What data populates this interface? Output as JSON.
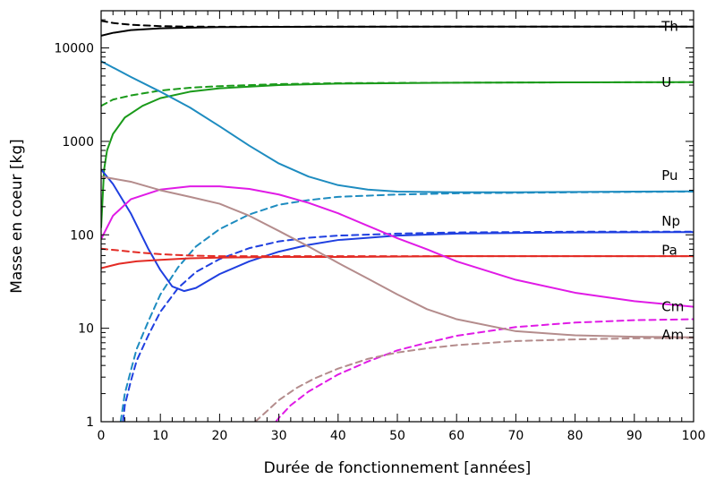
{
  "chart_data": {
    "type": "line",
    "title": "",
    "xlabel": "Durée de fonctionnement [années]",
    "ylabel": "Masse en coeur [kg]",
    "xlim": [
      0,
      100
    ],
    "ylim": [
      1,
      25000
    ],
    "yscale": "log",
    "grid": false,
    "xticks": [
      0,
      10,
      20,
      30,
      40,
      50,
      60,
      70,
      80,
      90,
      100
    ],
    "yticks": [
      {
        "value": 1,
        "label": "1"
      },
      {
        "value": 10,
        "label": "10"
      },
      {
        "value": 100,
        "label": "100"
      },
      {
        "value": 1000,
        "label": "1000"
      },
      {
        "value": 10000,
        "label": "10000"
      }
    ],
    "labels": [
      {
        "text": "Th",
        "x": 94,
        "y": 17000
      },
      {
        "text": "U",
        "x": 94,
        "y": 4300
      },
      {
        "text": "Pu",
        "x": 94,
        "y": 430
      },
      {
        "text": "Np",
        "x": 94,
        "y": 140
      },
      {
        "text": "Pa",
        "x": 94,
        "y": 68
      },
      {
        "text": "Cm",
        "x": 94,
        "y": 17
      },
      {
        "text": "Am",
        "x": 94,
        "y": 8.5
      }
    ],
    "series": [
      {
        "key": "th_solid",
        "color": "#000000",
        "dash": false,
        "x": [
          0,
          2,
          5,
          10,
          15,
          20,
          30,
          40,
          60,
          80,
          100
        ],
        "y": [
          13500,
          14500,
          15500,
          16200,
          16500,
          16700,
          16800,
          16850,
          16900,
          16900,
          16900
        ]
      },
      {
        "key": "th_dash",
        "color": "#000000",
        "dash": true,
        "x": [
          0,
          2,
          5,
          10,
          15,
          20,
          30,
          40,
          60,
          80,
          100
        ],
        "y": [
          19500,
          18500,
          17700,
          17100,
          16900,
          16850,
          16850,
          16900,
          16900,
          16900,
          16900
        ]
      },
      {
        "key": "u_solid",
        "color": "#1a9a1a",
        "dash": false,
        "x": [
          0,
          0.5,
          1,
          2,
          4,
          7,
          10,
          15,
          20,
          30,
          40,
          60,
          80,
          100
        ],
        "y": [
          120,
          500,
          800,
          1200,
          1800,
          2400,
          2900,
          3400,
          3700,
          4000,
          4150,
          4250,
          4280,
          4300
        ]
      },
      {
        "key": "u_dash",
        "color": "#1a9a1a",
        "dash": true,
        "x": [
          0,
          2,
          5,
          10,
          15,
          20,
          30,
          40,
          60,
          80,
          100
        ],
        "y": [
          2400,
          2800,
          3100,
          3500,
          3750,
          3900,
          4100,
          4200,
          4250,
          4280,
          4300
        ]
      },
      {
        "key": "pu_solid",
        "color": "#1e8cc0",
        "dash": false,
        "x": [
          0,
          5,
          10,
          15,
          20,
          25,
          30,
          35,
          40,
          45,
          50,
          60,
          70,
          80,
          90,
          100
        ],
        "y": [
          7200,
          4900,
          3400,
          2300,
          1450,
          900,
          580,
          420,
          340,
          305,
          290,
          285,
          285,
          288,
          290,
          292
        ]
      },
      {
        "key": "pu_dash",
        "color": "#1e8cc0",
        "dash": true,
        "x": [
          3.3,
          4,
          5,
          6,
          8,
          10,
          13,
          16,
          20,
          25,
          30,
          35,
          40,
          50,
          60,
          80,
          100
        ],
        "y": [
          1,
          2,
          3.5,
          6,
          12,
          23,
          45,
          75,
          115,
          165,
          210,
          235,
          255,
          270,
          278,
          285,
          290
        ]
      },
      {
        "key": "np_solid",
        "color": "#1f3fe0",
        "dash": false,
        "x": [
          0,
          2,
          5,
          8,
          10,
          12,
          14,
          16,
          18,
          20,
          25,
          30,
          35,
          40,
          50,
          60,
          80,
          100
        ],
        "y": [
          500,
          350,
          170,
          70,
          42,
          28,
          25,
          27,
          32,
          38,
          52,
          66,
          78,
          88,
          98,
          103,
          106,
          107
        ]
      },
      {
        "key": "np_dash",
        "color": "#1f3fe0",
        "dash": true,
        "x": [
          3.7,
          4,
          5,
          6,
          8,
          10,
          13,
          16,
          20,
          25,
          30,
          35,
          40,
          50,
          60,
          80,
          100
        ],
        "y": [
          1,
          1.5,
          2.7,
          4.5,
          8.5,
          15,
          27,
          40,
          55,
          72,
          85,
          93,
          98,
          103,
          106,
          108,
          108
        ]
      },
      {
        "key": "pa_solid",
        "color": "#e32b24",
        "dash": false,
        "x": [
          0,
          3,
          6,
          10,
          15,
          20,
          30,
          40,
          60,
          80,
          100
        ],
        "y": [
          44,
          49,
          52,
          54,
          56,
          57,
          58,
          58,
          59,
          59,
          59
        ]
      },
      {
        "key": "pa_dash",
        "color": "#e32b24",
        "dash": true,
        "x": [
          0,
          3,
          6,
          10,
          15,
          20,
          30,
          40,
          60,
          80,
          100
        ],
        "y": [
          71,
          68,
          65,
          62,
          60,
          59,
          59,
          59,
          59,
          59,
          59
        ]
      },
      {
        "key": "cm_solid",
        "color": "#e01be6",
        "dash": false,
        "x": [
          0,
          2,
          5,
          10,
          15,
          20,
          25,
          30,
          35,
          40,
          45,
          50,
          55,
          60,
          70,
          80,
          90,
          100
        ],
        "y": [
          90,
          160,
          240,
          305,
          330,
          330,
          310,
          270,
          220,
          170,
          125,
          92,
          70,
          52,
          33,
          24,
          19.5,
          17
        ]
      },
      {
        "key": "cm_dash",
        "color": "#e01be6",
        "dash": true,
        "x": [
          29.5,
          30,
          32,
          35,
          40,
          45,
          50,
          55,
          60,
          70,
          80,
          90,
          100
        ],
        "y": [
          1,
          1.1,
          1.5,
          2.1,
          3.2,
          4.4,
          5.8,
          7,
          8.3,
          10.3,
          11.5,
          12.2,
          12.5
        ]
      },
      {
        "key": "am_solid",
        "color": "#b48c8c",
        "dash": false,
        "x": [
          0,
          5,
          10,
          15,
          20,
          25,
          30,
          35,
          40,
          45,
          50,
          55,
          60,
          70,
          80,
          90,
          100
        ],
        "y": [
          420,
          370,
          300,
          255,
          215,
          160,
          110,
          75,
          50,
          34,
          23,
          16,
          12.5,
          9.3,
          8.4,
          8.1,
          8
        ]
      },
      {
        "key": "am_dash",
        "color": "#b48c8c",
        "dash": true,
        "x": [
          26,
          28,
          30,
          33,
          36,
          40,
          45,
          50,
          55,
          60,
          70,
          80,
          90,
          100
        ],
        "y": [
          1,
          1.3,
          1.7,
          2.3,
          2.9,
          3.7,
          4.7,
          5.5,
          6.1,
          6.6,
          7.3,
          7.6,
          7.8,
          7.9
        ]
      }
    ]
  }
}
